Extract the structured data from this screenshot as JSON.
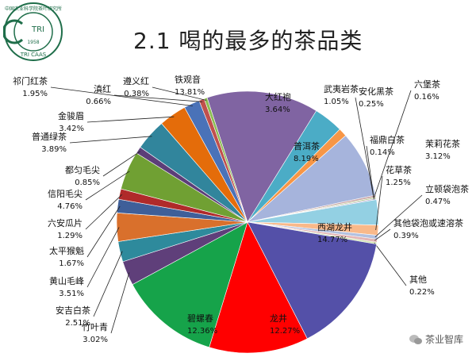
{
  "logo": {
    "name_text": "中国农业科学院茶叶研究所",
    "tri_text": "TRI",
    "year_text": "1958",
    "abbr_text": "TRI CAAS"
  },
  "title": "2.1 喝的最多的茶品类",
  "watermark": "茶业智库",
  "chart_data": {
    "type": "pie",
    "title": "2.1 喝的最多的茶品类",
    "unit": "%",
    "start_angle_deg": -108,
    "direction": "clockwise",
    "slices": [
      {
        "label": "铁观音",
        "value": 13.81,
        "color": "#8064a2"
      },
      {
        "label": "大红袍",
        "value": 3.64,
        "color": "#4bacc6"
      },
      {
        "label": "武夷岩茶",
        "value": 1.05,
        "color": "#f79646"
      },
      {
        "label": "普洱茶",
        "value": 8.19,
        "color": "#a6b4dc"
      },
      {
        "label": "安化黑茶",
        "value": 0.25,
        "color": "#c9a6a6"
      },
      {
        "label": "六堡茶",
        "value": 0.16,
        "color": "#b7cc8a"
      },
      {
        "label": "福鼎白茶",
        "value": 0.14,
        "color": "#b4a7cf"
      },
      {
        "label": "茉莉花茶",
        "value": 3.12,
        "color": "#93d0e3"
      },
      {
        "label": "花草茶",
        "value": 1.25,
        "color": "#f9b98a"
      },
      {
        "label": "立顿袋泡茶",
        "value": 0.47,
        "color": "#b3c1e0"
      },
      {
        "label": "其他袋泡或速溶茶",
        "value": 0.39,
        "color": "#e3b6b6"
      },
      {
        "label": "其他",
        "value": 0.22,
        "color": "#d0e3b0"
      },
      {
        "label": "西湖龙井",
        "value": 14.77,
        "color": "#5450a8"
      },
      {
        "label": "龙井",
        "value": 12.27,
        "color": "#ff0000"
      },
      {
        "label": "碧螺春",
        "value": 12.36,
        "color": "#16a34a"
      },
      {
        "label": "竹叶青",
        "value": 3.02,
        "color": "#5f3f7a"
      },
      {
        "label": "安吉白茶",
        "value": 2.51,
        "color": "#2e8a9c"
      },
      {
        "label": "黄山毛峰",
        "value": 3.51,
        "color": "#d9702c"
      },
      {
        "label": "太平猴魁",
        "value": 1.67,
        "color": "#3f5f99"
      },
      {
        "label": "六安瓜片",
        "value": 1.29,
        "color": "#b02a2a"
      },
      {
        "label": "信阳毛尖",
        "value": 4.76,
        "color": "#70a033"
      },
      {
        "label": "都匀毛尖",
        "value": 0.85,
        "color": "#5c3e78"
      },
      {
        "label": "普通绿茶",
        "value": 3.89,
        "color": "#31859c"
      },
      {
        "label": "金骏眉",
        "value": 3.42,
        "color": "#e46c0a"
      },
      {
        "label": "祁门红茶",
        "value": 1.95,
        "color": "#4a72b8"
      },
      {
        "label": "滇红",
        "value": 0.66,
        "color": "#c0504d"
      },
      {
        "label": "遵义红",
        "value": 0.38,
        "color": "#8cbd52"
      }
    ]
  }
}
